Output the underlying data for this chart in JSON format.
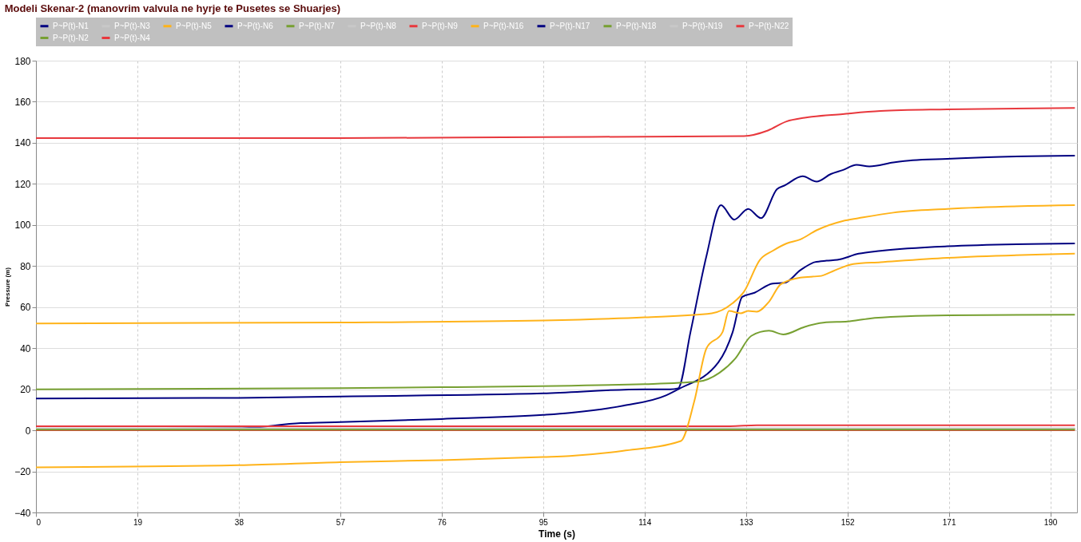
{
  "chart_data": {
    "type": "line",
    "title": "Modeli Skenar-2 (manovrim valvula ne hyrje te Pusetes se Shuarjes)",
    "xlabel": "Time (s)",
    "ylabel": "Pressure (m)",
    "xlim": [
      0,
      195
    ],
    "xticks": [
      0,
      19,
      38,
      57,
      76,
      95,
      114,
      133,
      152,
      171,
      190
    ],
    "ylim": [
      -40,
      180
    ],
    "yticks": [
      -40,
      -20,
      0,
      20,
      40,
      60,
      80,
      100,
      120,
      140,
      160,
      180
    ],
    "grid": true,
    "legend": "top",
    "line_style": "solid",
    "marker": "none",
    "series": [
      {
        "name": "P~P(t)-N1",
        "color": "#000080",
        "x": [
          0,
          38,
          57,
          95,
          114,
          118.8,
          120.3,
          122.6,
          125.6,
          128.3,
          130.8,
          133.4,
          135.8,
          138.8,
          140.3,
          143.6,
          146.2,
          148.9,
          151.1,
          153.7,
          156.1,
          160.6,
          164.2,
          170.7,
          178.2,
          194.6
        ],
        "values": [
          15.5,
          15.8,
          16.5,
          18,
          20,
          20,
          20.5,
          47.8,
          85,
          109.6,
          102.6,
          107.8,
          103.3,
          117.4,
          119.3,
          123.7,
          121.1,
          124.8,
          126.7,
          129.3,
          128.5,
          130.4,
          131.5,
          132.2,
          133,
          133.7
        ]
      },
      {
        "name": "P~P(t)-N3",
        "color": "#c8c8c8"
      },
      {
        "name": "P~P(t)-N5",
        "color": "#ffb31a",
        "x": [
          0,
          57,
          95,
          114,
          126.6,
          130.5,
          132.6,
          135.6,
          138,
          140.6,
          143.2,
          146.2,
          151.1,
          154.1,
          160.6,
          170.7,
          194.6
        ],
        "values": [
          52,
          52.5,
          53.5,
          55,
          57,
          61.9,
          67.4,
          83,
          87.4,
          91,
          93,
          97.4,
          101.9,
          103.3,
          106,
          107.8,
          109.6
        ]
      },
      {
        "name": "P~P(t)-N6",
        "color": "#000080",
        "x": [
          0,
          38,
          49.6,
          57,
          76,
          95,
          100,
          110,
          118,
          120.3,
          127.8,
          130.5,
          132.3,
          134.6,
          138,
          140.2,
          143.2,
          145.9,
          148.1,
          150.1,
          154.1,
          158.2,
          170.7,
          194.6
        ],
        "values": [
          0.5,
          1,
          3.5,
          4,
          5.5,
          7.5,
          8.5,
          12,
          17,
          20,
          33,
          47.8,
          65,
          67,
          71.5,
          71.8,
          78,
          81.9,
          82.6,
          83,
          86,
          87.4,
          89.6,
          91
        ]
      },
      {
        "name": "P~P(t)-N7",
        "color": "#77a032",
        "x": [
          0,
          57,
          76,
          114,
          124,
          128,
          131,
          134,
          137.3,
          140,
          144,
          148,
          152,
          156,
          163,
          171,
          194.6
        ],
        "values": [
          20,
          20.5,
          21,
          22.5,
          23.7,
          28,
          35,
          46,
          48.5,
          46.7,
          50.4,
          52.6,
          53,
          54.4,
          55.5,
          56,
          56.3
        ]
      },
      {
        "name": "P~P(t)-N8",
        "color": "#c8c8c8"
      },
      {
        "name": "P~P(t)-N9",
        "color": "#e8383d",
        "x": [
          0,
          130,
          135,
          194.6
        ],
        "values": [
          2,
          2,
          2.5,
          2.5
        ]
      },
      {
        "name": "P~P(t)-N16",
        "color": "#ffb31a",
        "x": [
          0,
          38,
          57,
          76,
          95,
          100,
          110,
          120.8,
          123.3,
          125.6,
          128.6,
          129.8,
          132,
          133.4,
          135,
          137.3,
          139.5,
          143.2,
          147.1,
          149.2,
          153.1,
          158.2,
          170.7,
          194.6
        ],
        "values": [
          -18,
          -17,
          -15.5,
          -14.5,
          -13,
          -12.5,
          -10,
          -5.2,
          14,
          40,
          47.8,
          58.1,
          57,
          58.1,
          57.8,
          62.6,
          71.1,
          74.4,
          75.2,
          77.4,
          81,
          81.9,
          84,
          86
        ]
      },
      {
        "name": "P~P(t)-N17",
        "color": "#000080"
      },
      {
        "name": "P~P(t)-N18",
        "color": "#77a032",
        "x": [
          0,
          194.6
        ],
        "values": [
          0.8,
          0.8
        ]
      },
      {
        "name": "P~P(t)-N19",
        "color": "#c8c8c8",
        "x": [
          0,
          194.6
        ],
        "values": [
          1,
          1
        ]
      },
      {
        "name": "P~P(t)-N22",
        "color": "#e8383d",
        "x": [
          0,
          194.6
        ],
        "values": [
          0,
          0
        ]
      },
      {
        "name": "P~P(t)-N2",
        "color": "#77a032",
        "x": [
          0,
          194.6
        ],
        "values": [
          0.3,
          0.3
        ]
      },
      {
        "name": "P~P(t)-N4",
        "color": "#e8383d",
        "x": [
          0,
          57,
          95,
          114,
          132.6,
          137.1,
          140.6,
          144,
          151.1,
          158.2,
          170.7,
          194.6
        ],
        "values": [
          142.3,
          142.3,
          142.8,
          143,
          143.3,
          146,
          150.4,
          152.2,
          154,
          155.5,
          156.3,
          157
        ]
      }
    ]
  }
}
